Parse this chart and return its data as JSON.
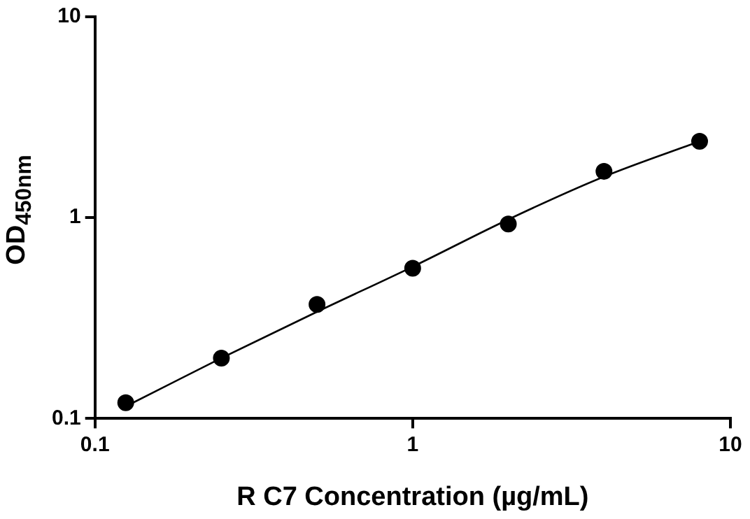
{
  "chart_data": {
    "type": "scatter",
    "xlabel": "R C7 Concentration (µg/mL)",
    "ylabel": "OD$_{450nm}$",
    "log": "xy",
    "xlim": [
      0.1,
      10
    ],
    "xticks": [
      0.1,
      1,
      10
    ],
    "ylim": [
      0.1,
      10
    ],
    "yticks": [
      0.1,
      1,
      10
    ],
    "grid": false,
    "legend": false,
    "series": [
      {
        "color": "#000000",
        "marker": "circle",
        "x": [
          0.125,
          0.25,
          0.5,
          1,
          2,
          4,
          8
        ],
        "values": [
          0.12,
          0.2,
          0.37,
          0.56,
          0.93,
          1.7,
          2.4
        ]
      },
      {
        "type": "line",
        "color": "#000000",
        "marker": "none",
        "line_style": "solid",
        "x": [
          0.125,
          0.25,
          0.5,
          1,
          2,
          4,
          8
        ],
        "values": [
          0.115,
          0.2,
          0.34,
          0.57,
          0.98,
          1.6,
          2.4
        ]
      }
    ]
  }
}
